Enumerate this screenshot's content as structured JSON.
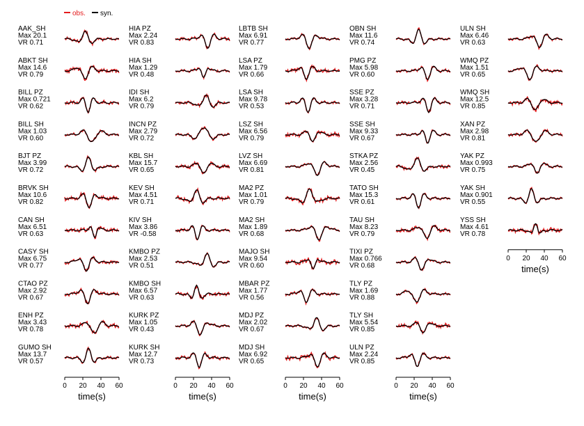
{
  "chart_data": {
    "type": "line",
    "legend": {
      "placement": "top-left",
      "entries": [
        {
          "label": "obs.",
          "color": "#e41a1c"
        },
        {
          "label": "syn.",
          "color": "#000000"
        }
      ]
    },
    "xlabel": "time(s)",
    "xlim": [
      0,
      60
    ],
    "xticks": [
      0,
      20,
      40,
      60
    ],
    "colors": {
      "obs": "#e41a1c",
      "syn": "#000000"
    },
    "columns": [
      {
        "stations": [
          {
            "name": "AAK_SH",
            "max": "Max   20.1",
            "vr": "VR 0.71"
          },
          {
            "name": "ABKT SH",
            "max": "Max   14.6",
            "vr": "VR 0.79"
          },
          {
            "name": "BILL PZ",
            "max": "Max   0.721",
            "vr": "VR 0.62"
          },
          {
            "name": "BILL SH",
            "max": "Max   1.03",
            "vr": "VR 0.60"
          },
          {
            "name": "BJT   PZ",
            "max": "Max   3.99",
            "vr": "VR 0.72"
          },
          {
            "name": "BRVK SH",
            "max": "Max   10.6",
            "vr": "VR 0.82"
          },
          {
            "name": "CAN   SH",
            "max": "Max   6.51",
            "vr": "VR 0.63"
          },
          {
            "name": "CASY SH",
            "max": "Max   6.75",
            "vr": "VR 0.77"
          },
          {
            "name": "CTAO PZ",
            "max": "Max   2.92",
            "vr": "VR 0.67"
          },
          {
            "name": "ENH   PZ",
            "max": "Max   3.43",
            "vr": "VR 0.78"
          },
          {
            "name": "GUMO SH",
            "max": "Max   13.7",
            "vr": "VR 0.57"
          }
        ]
      },
      {
        "stations": [
          {
            "name": "HIA   PZ",
            "max": "Max   2.24",
            "vr": "VR 0.83"
          },
          {
            "name": "HIA   SH",
            "max": "Max   1.29",
            "vr": "VR 0.48"
          },
          {
            "name": "IDI   SH",
            "max": "Max   6.2",
            "vr": "VR 0.79"
          },
          {
            "name": "INCN PZ",
            "max": "Max   2.79",
            "vr": "VR 0.72"
          },
          {
            "name": "KBL   SH",
            "max": "Max   15.7",
            "vr": "VR 0.65"
          },
          {
            "name": "KEV   SH",
            "max": "Max   4.51",
            "vr": "VR 0.71"
          },
          {
            "name": "KIV   SH",
            "max": "Max   3.86",
            "vr": "VR -0.58"
          },
          {
            "name": "KMBO PZ",
            "max": "Max   2.53",
            "vr": "VR 0.51"
          },
          {
            "name": "KMBO SH",
            "max": "Max   6.57",
            "vr": "VR 0.63"
          },
          {
            "name": "KURK PZ",
            "max": "Max   1.05",
            "vr": "VR 0.43"
          },
          {
            "name": "KURK SH",
            "max": "Max   12.7",
            "vr": "VR 0.73"
          }
        ]
      },
      {
        "stations": [
          {
            "name": "LBTB SH",
            "max": "Max   6.91",
            "vr": "VR 0.77"
          },
          {
            "name": "LSA   PZ",
            "max": "Max   1.79",
            "vr": "VR 0.66"
          },
          {
            "name": "LSA   SH",
            "max": "Max   9.78",
            "vr": "VR 0.53"
          },
          {
            "name": "LSZ   SH",
            "max": "Max   6.56",
            "vr": "VR 0.79"
          },
          {
            "name": "LVZ   SH",
            "max": "Max   6.69",
            "vr": "VR 0.81"
          },
          {
            "name": "MA2   PZ",
            "max": "Max   1.01",
            "vr": "VR 0.79"
          },
          {
            "name": "MA2   SH",
            "max": "Max   1.89",
            "vr": "VR 0.68"
          },
          {
            "name": "MAJO SH",
            "max": "Max   9.54",
            "vr": "VR 0.60"
          },
          {
            "name": "MBAR PZ",
            "max": "Max   1.77",
            "vr": "VR 0.56"
          },
          {
            "name": "MDJ   PZ",
            "max": "Max   2.02",
            "vr": "VR 0.67"
          },
          {
            "name": "MDJ   SH",
            "max": "Max   6.92",
            "vr": "VR 0.65"
          }
        ]
      },
      {
        "stations": [
          {
            "name": "OBN   SH",
            "max": "Max   11.6",
            "vr": "VR 0.74"
          },
          {
            "name": "PMG   PZ",
            "max": "Max   5.98",
            "vr": "VR 0.60"
          },
          {
            "name": "SSE   PZ",
            "max": "Max   3.28",
            "vr": "VR 0.71"
          },
          {
            "name": "SSE   SH",
            "max": "Max   9.33",
            "vr": "VR 0.67"
          },
          {
            "name": "STKA PZ",
            "max": "Max   2.56",
            "vr": "VR 0.45"
          },
          {
            "name": "TATO SH",
            "max": "Max   15.3",
            "vr": "VR 0.61"
          },
          {
            "name": "TAU   SH",
            "max": "Max   8.23",
            "vr": "VR 0.79"
          },
          {
            "name": "TIXI PZ",
            "max": "Max   0.766",
            "vr": "VR 0.68"
          },
          {
            "name": "TLY   PZ",
            "max": "Max   1.69",
            "vr": "VR 0.88"
          },
          {
            "name": "TLY   SH",
            "max": "Max   5.54",
            "vr": "VR 0.85"
          },
          {
            "name": "ULN   PZ",
            "max": "Max   2.24",
            "vr": "VR 0.85"
          }
        ]
      },
      {
        "stations": [
          {
            "name": "ULN   SH",
            "max": "Max   6.46",
            "vr": "VR 0.63"
          },
          {
            "name": "WMQ   PZ",
            "max": "Max   1.51",
            "vr": "VR 0.65"
          },
          {
            "name": "WMQ   SH",
            "max": "Max   12.5",
            "vr": "VR 0.85"
          },
          {
            "name": "XAN   PZ",
            "max": "Max   2.98",
            "vr": "VR 0.81"
          },
          {
            "name": "YAK   PZ",
            "max": "Max   0.993",
            "vr": "VR 0.75"
          },
          {
            "name": "YAK   SH",
            "max": "Max   0.901",
            "vr": "VR 0.55"
          },
          {
            "name": "YSS   SH",
            "max": "Max   4.61",
            "vr": "VR 0.78"
          }
        ]
      }
    ]
  }
}
